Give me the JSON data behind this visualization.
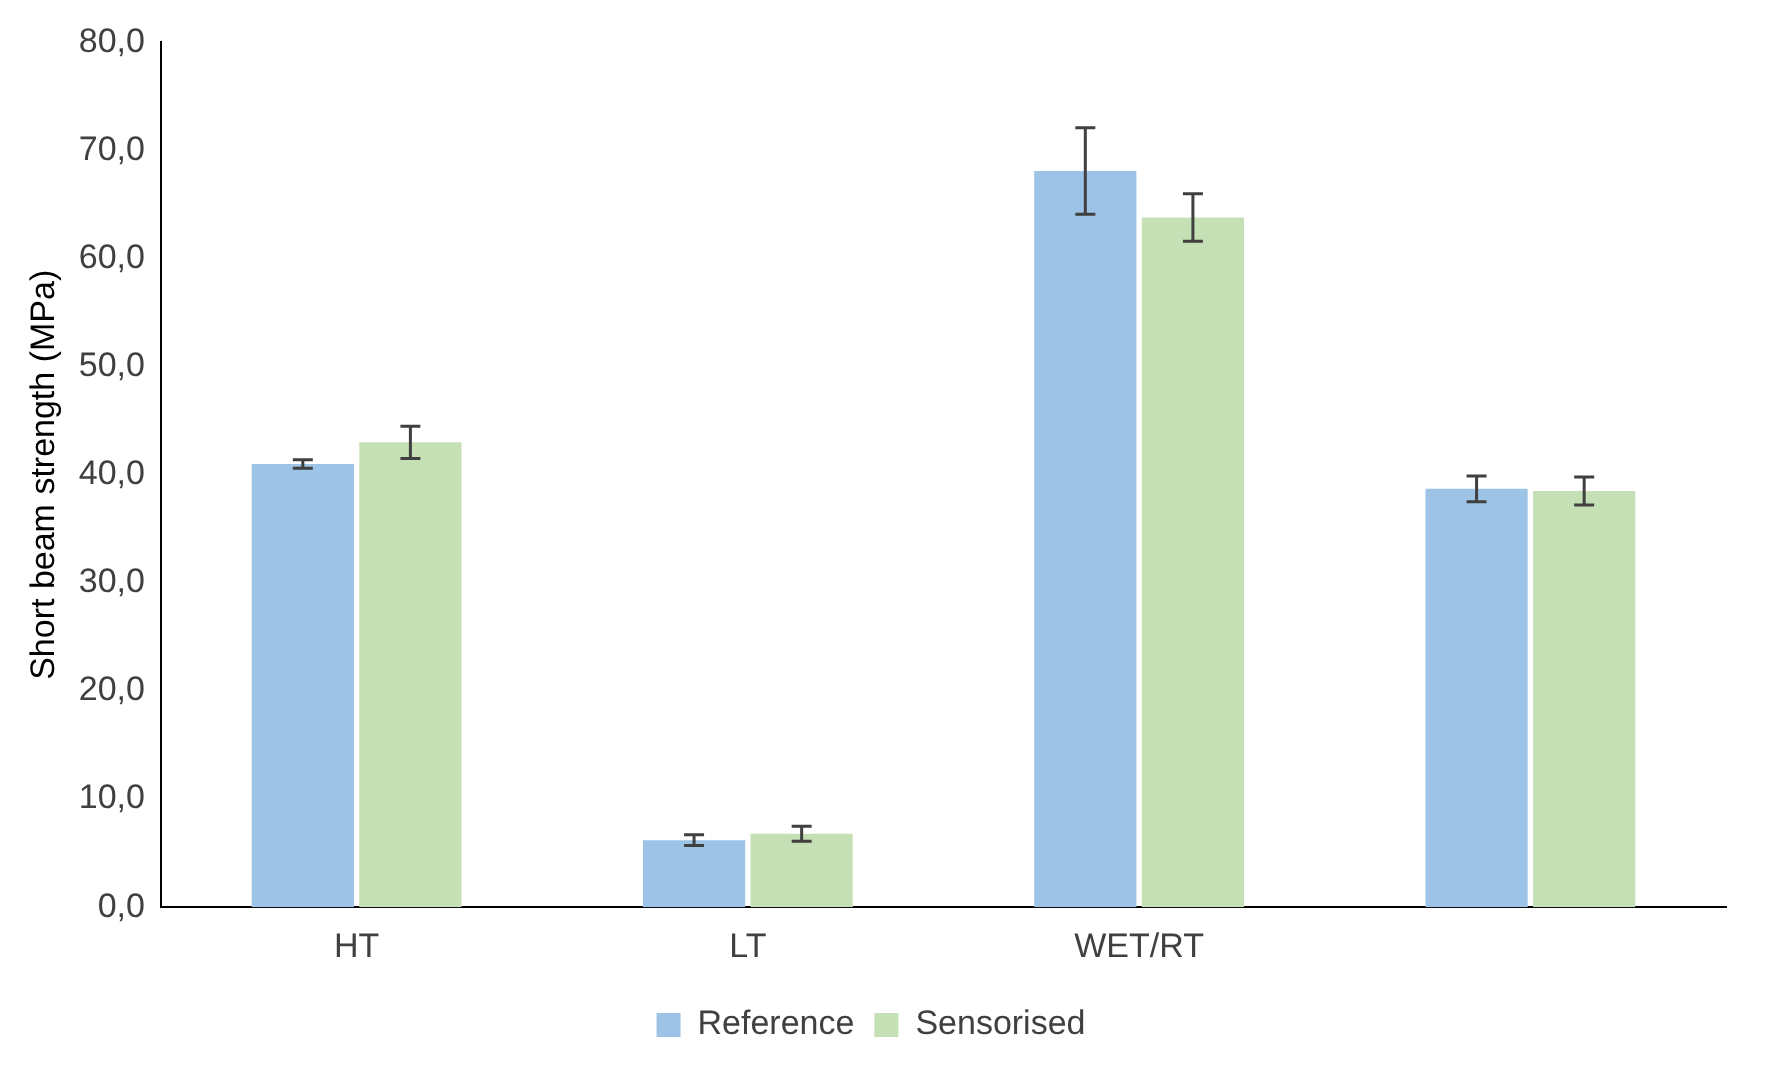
{
  "chart_data": {
    "type": "bar",
    "ylabel": "Short beam strength (MPa)",
    "categories": [
      "HT",
      "LT",
      "WET/RT",
      null
    ],
    "series": [
      {
        "name": "Reference",
        "color": "#9dc3e6",
        "values": [
          41.0,
          6.2,
          68.1,
          38.7
        ],
        "errors": [
          0.4,
          0.5,
          4.0,
          1.2
        ]
      },
      {
        "name": "Sensorised",
        "color": "#c5e0b4",
        "values": [
          43.0,
          6.8,
          63.8,
          38.5
        ],
        "errors": [
          1.5,
          0.7,
          2.2,
          1.3
        ]
      }
    ],
    "ylim": [
      0,
      80
    ],
    "yticks": [
      {
        "value": 0,
        "label": "0,0"
      },
      {
        "value": 10,
        "label": "10,0"
      },
      {
        "value": 20,
        "label": "20,0"
      },
      {
        "value": 30,
        "label": "30,0"
      },
      {
        "value": 40,
        "label": "40,0"
      },
      {
        "value": 50,
        "label": "50,0"
      },
      {
        "value": 60,
        "label": "60,0"
      },
      {
        "value": 70,
        "label": "70,0"
      },
      {
        "value": 80,
        "label": "80,0"
      }
    ],
    "grid": false,
    "legend": "bottom"
  }
}
